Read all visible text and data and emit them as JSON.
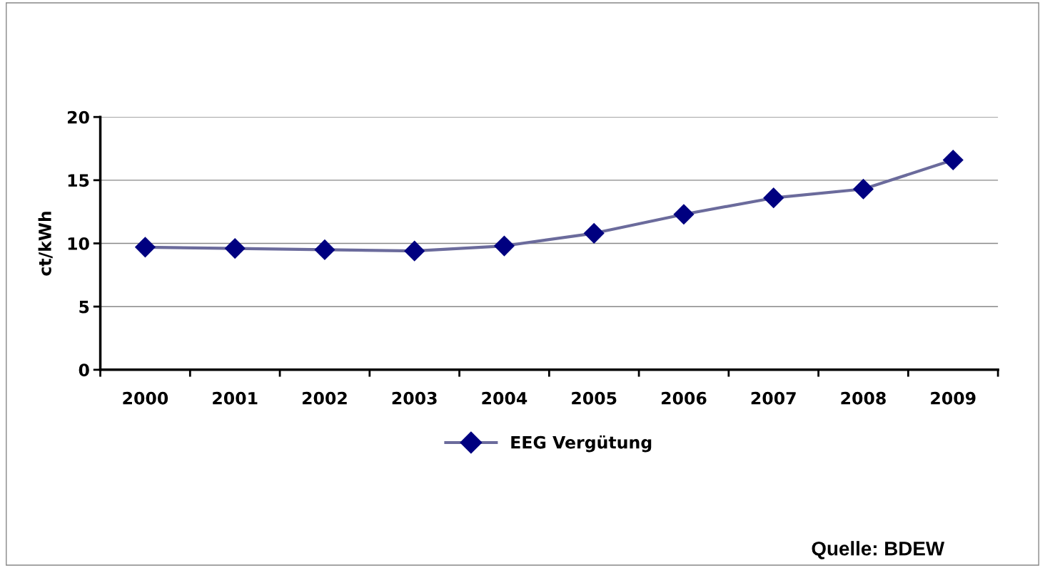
{
  "chart_data": {
    "type": "line",
    "ylabel": "ct/kWh",
    "categories": [
      "2000",
      "2001",
      "2002",
      "2003",
      "2004",
      "2005",
      "2006",
      "2007",
      "2008",
      "2009"
    ],
    "series": [
      {
        "name": "EEG Vergütung",
        "color": "#6b6b9c",
        "colors": [
          "#000080",
          "#000080",
          "#000080",
          "#000080",
          "#000080",
          "#000080",
          "#000080",
          "#000080",
          "#000080",
          "#000080"
        ],
        "values": [
          9.7,
          9.6,
          9.5,
          9.4,
          9.8,
          10.8,
          12.3,
          13.6,
          14.3,
          16.6
        ]
      }
    ],
    "ylim": [
      0,
      20
    ],
    "yticks": [
      0,
      5,
      10,
      15,
      20
    ],
    "grid": "y",
    "legend": "bottom",
    "marker": "diamond",
    "line_style": "solid",
    "annotations": [
      "Quelle: BDEW"
    ]
  }
}
